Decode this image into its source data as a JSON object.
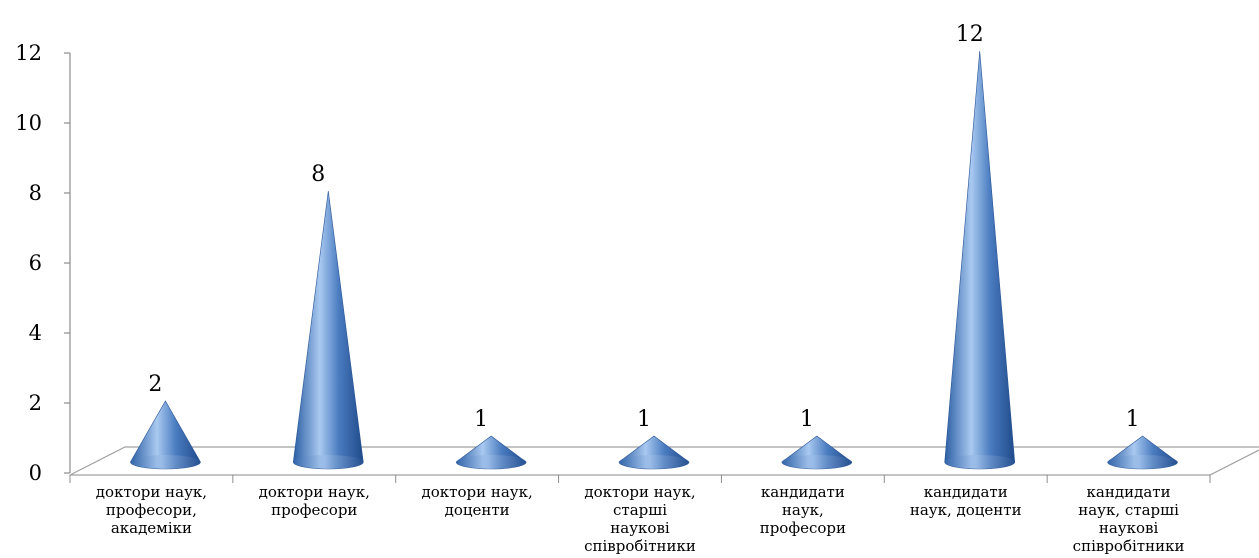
{
  "chart_data": {
    "type": "bar",
    "mark": "cone",
    "categories": [
      [
        "доктори наук,",
        "професори,",
        "академіки"
      ],
      [
        "доктори наук,",
        "професори"
      ],
      [
        "доктори наук,",
        "доценти"
      ],
      [
        "доктори наук,",
        "старші",
        "наукові",
        "співробітники"
      ],
      [
        "кандидати",
        "наук,",
        "професори"
      ],
      [
        "кандидати",
        "наук, доценти"
      ],
      [
        "кандидати",
        "наук, старші",
        "наукові",
        "співробітники"
      ]
    ],
    "values": [
      2,
      8,
      1,
      1,
      1,
      12,
      1
    ],
    "ylim": [
      0,
      12
    ],
    "yticks": [
      0,
      2,
      4,
      6,
      8,
      10,
      12
    ],
    "data_labels": true,
    "grid": false,
    "colors": {
      "cone": "#4a7cc0",
      "cone_light": "#a9c9f0",
      "cone_dark": "#1f4a8a",
      "floor": "#a0a0a0",
      "axis": "#8c8c8c"
    }
  }
}
